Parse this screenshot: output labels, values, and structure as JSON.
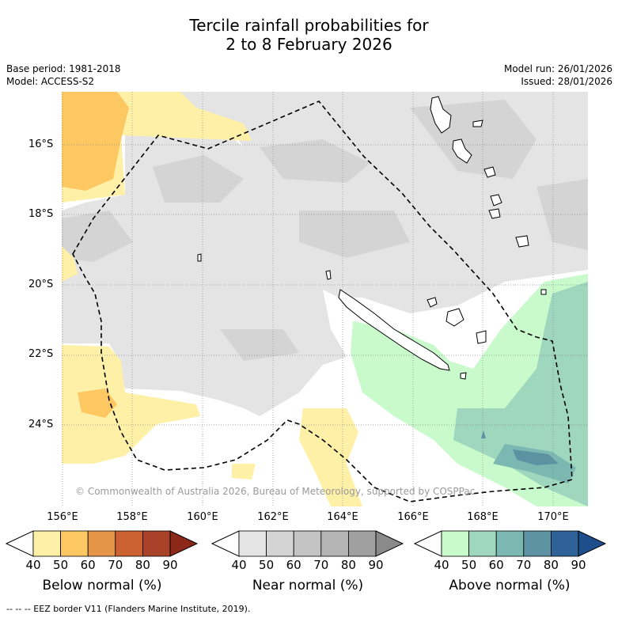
{
  "title": {
    "line1": "Tercile rainfall probabilities for",
    "line2": "2 to 8 February 2026"
  },
  "meta": {
    "base_period": "Base period: 1981-2018",
    "model": "Model: ACCESS-S2",
    "model_run": "Model run: 26/01/2026",
    "issued": "Issued: 28/01/2026"
  },
  "axes": {
    "lat_labels": [
      "16°S",
      "18°S",
      "20°S",
      "22°S",
      "24°S"
    ],
    "lon_labels": [
      "156°E",
      "158°E",
      "160°E",
      "162°E",
      "164°E",
      "166°E",
      "168°E",
      "170°E"
    ]
  },
  "credit": "© Commonwealth of Australia 2026, Bureau of Meteorology, supported by COSPPac",
  "legend": {
    "below": {
      "title": "Below normal (%)",
      "ticks": [
        "40",
        "50",
        "60",
        "70",
        "80",
        "90"
      ],
      "colors": [
        "#fff0a8",
        "#fdc862",
        "#e49548",
        "#cc6232",
        "#a84228",
        "#8c2818"
      ]
    },
    "near": {
      "title": "Near normal (%)",
      "ticks": [
        "40",
        "50",
        "60",
        "70",
        "80",
        "90"
      ],
      "colors": [
        "#e4e4e4",
        "#d4d4d4",
        "#c4c4c4",
        "#b4b4b4",
        "#a0a0a0",
        "#8a8a8a"
      ]
    },
    "above": {
      "title": "Above normal (%)",
      "ticks": [
        "40",
        "50",
        "60",
        "70",
        "80",
        "90"
      ],
      "colors": [
        "#c8facc",
        "#9ed6be",
        "#7cb8b2",
        "#5c92a2",
        "#2e6298",
        "#1e4e8c"
      ]
    }
  },
  "footer": "--  --  -- EEZ border V11 (Flanders Marine Institute, 2019)."
}
